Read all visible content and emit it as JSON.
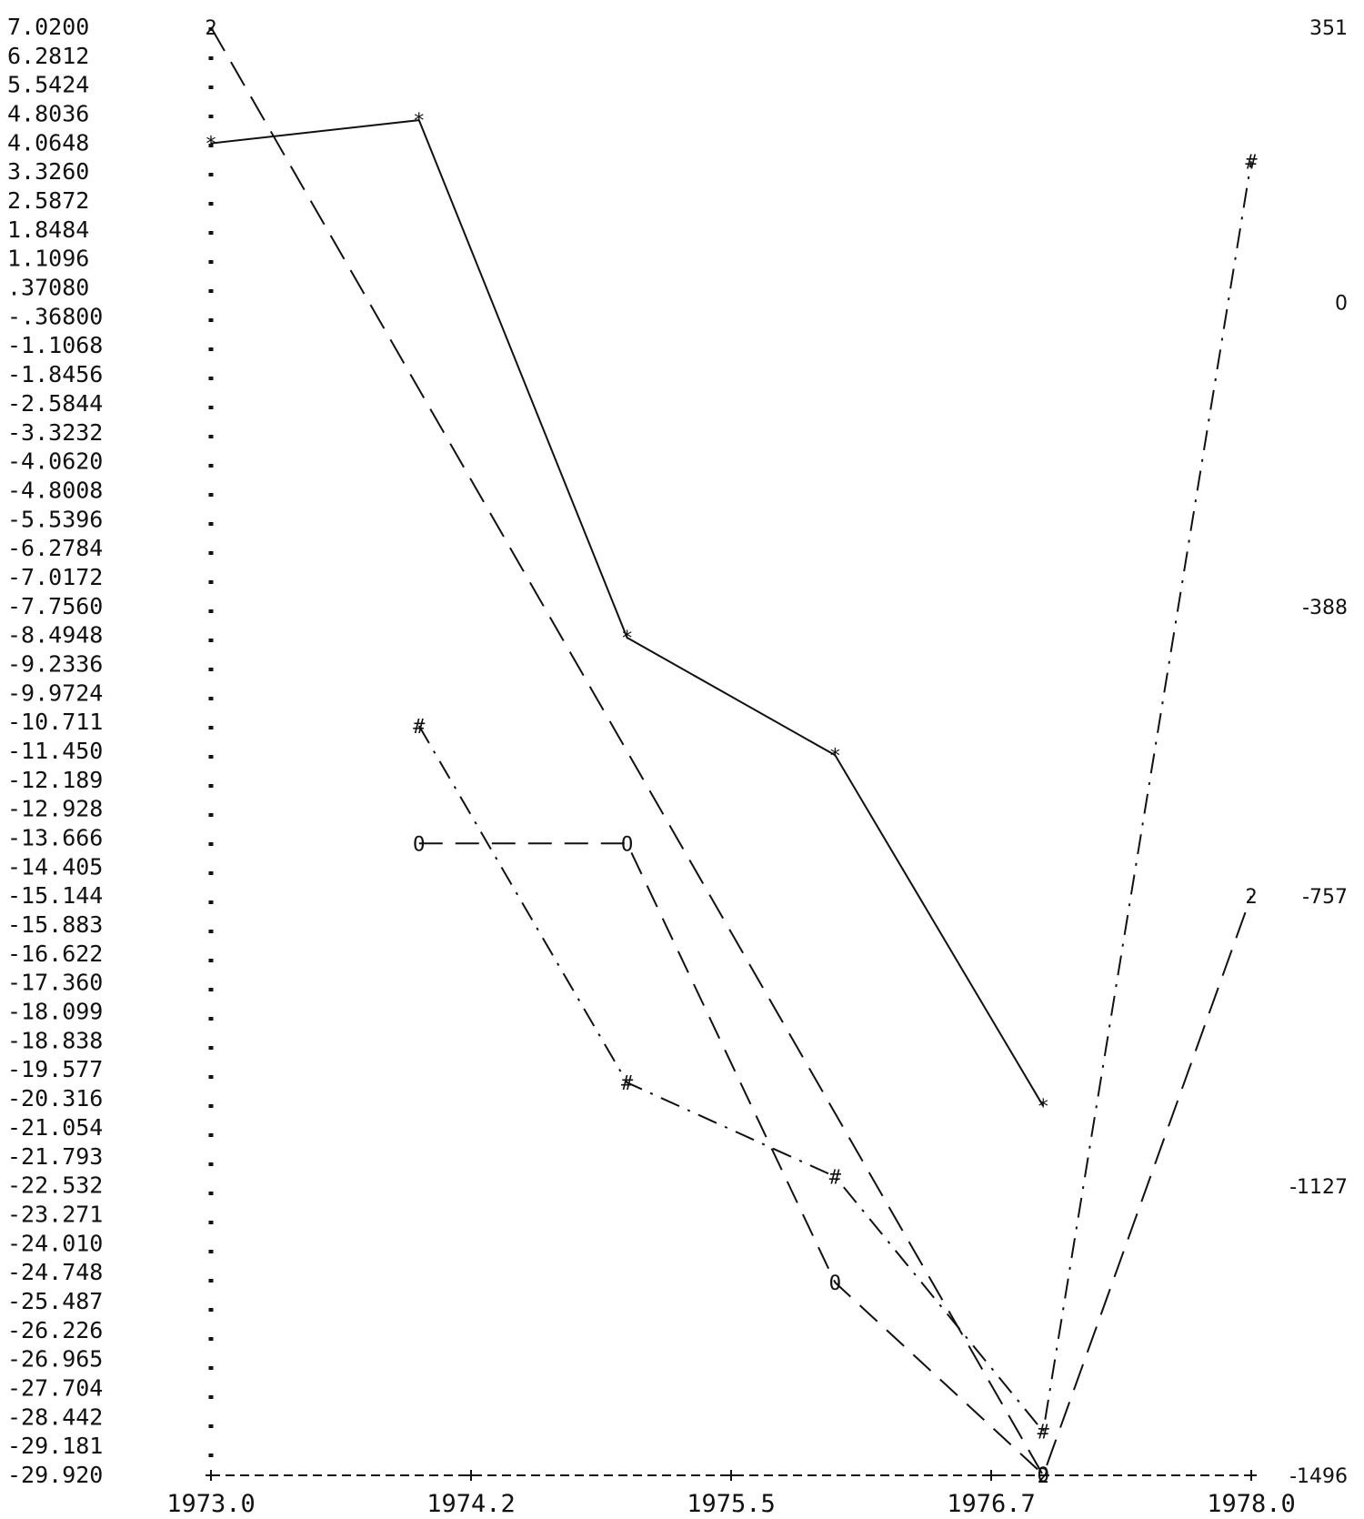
{
  "chart_data": {
    "type": "line",
    "title": "",
    "xlabel": "",
    "ylabel": "",
    "xlim": [
      1973.0,
      1978.0
    ],
    "ylim_left": [
      -29.92,
      7.02
    ],
    "ylim_right": [
      -1496,
      351
    ],
    "grid": false,
    "x_ticks": [
      "1973.0",
      "1974.2",
      "1975.5",
      "1976.7",
      "1978.0"
    ],
    "y_ticks_left": [
      "7.0200",
      "6.2812",
      "5.5424",
      "4.8036",
      "4.0648",
      "3.3260",
      "2.5872",
      "1.8484",
      "1.1096",
      ".37080",
      "-.36800",
      "-1.1068",
      "-1.8456",
      "-2.5844",
      "-3.3232",
      "-4.0620",
      "-4.8008",
      "-5.5396",
      "-6.2784",
      "-7.0172",
      "-7.7560",
      "-8.4948",
      "-9.2336",
      "-9.9724",
      "-10.711",
      "-11.450",
      "-12.189",
      "-12.928",
      "-13.666",
      "-14.405",
      "-15.144",
      "-15.883",
      "-16.622",
      "-17.360",
      "-18.099",
      "-18.838",
      "-19.577",
      "-20.316",
      "-21.054",
      "-21.793",
      "-22.532",
      "-23.271",
      "-24.010",
      "-24.748",
      "-25.487",
      "-26.226",
      "-26.965",
      "-27.704",
      "-28.442",
      "-29.181",
      "-29.920"
    ],
    "y_ticks_right": [
      "351",
      "0",
      "-388",
      "-757",
      "-1127",
      "-1496"
    ],
    "series": [
      {
        "marker": "*",
        "style": "solid",
        "axis": "left",
        "x": [
          1973.0,
          1974.0,
          1975.0,
          1976.0,
          1977.0
        ],
        "y": [
          4.06,
          4.65,
          -8.55,
          -11.55,
          -20.5
        ]
      },
      {
        "marker": "O",
        "style": "dashed",
        "axis": "left",
        "x": [
          1974.0,
          1975.0,
          1976.0,
          1977.0
        ],
        "y": [
          -13.8,
          -13.8,
          -25.0,
          -29.9
        ]
      },
      {
        "marker": "#",
        "style": "dashdot",
        "axis": "left",
        "x": [
          1974.0,
          1975.0,
          1976.0,
          1977.0,
          1978.0
        ],
        "y": [
          -10.8,
          -19.9,
          -22.3,
          -28.8,
          3.6
        ]
      },
      {
        "marker": "2",
        "style": "longdash",
        "axis": "right",
        "x": [
          1973.0,
          1977.0,
          1978.0
        ],
        "y": [
          351,
          -1496,
          -757
        ]
      }
    ]
  }
}
